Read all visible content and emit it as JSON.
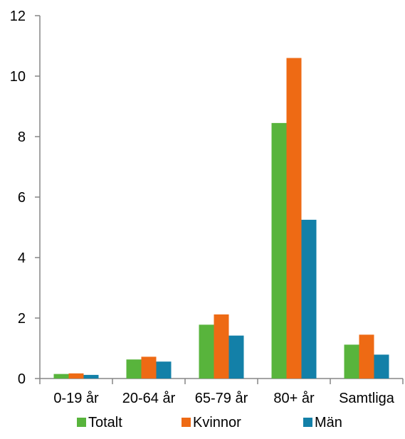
{
  "chart_data": {
    "type": "bar",
    "title": "",
    "xlabel": "",
    "ylabel": "",
    "categories": [
      "0-19 år",
      "20-64 år",
      "65-79 år",
      "80+ år",
      "Samtliga"
    ],
    "series": [
      {
        "name": "Totalt",
        "color": "#58B43C",
        "values": [
          0.15,
          0.63,
          1.78,
          8.45,
          1.12
        ]
      },
      {
        "name": "Kvinnor",
        "color": "#EE6A14",
        "values": [
          0.17,
          0.72,
          2.12,
          10.6,
          1.45
        ]
      },
      {
        "name": "Män",
        "color": "#1380A8",
        "values": [
          0.12,
          0.56,
          1.42,
          5.25,
          0.79
        ]
      }
    ],
    "ylim": [
      0,
      12
    ],
    "yticks": [
      0,
      2,
      4,
      6,
      8,
      10,
      12
    ],
    "grid": false,
    "legend_position": "bottom"
  }
}
